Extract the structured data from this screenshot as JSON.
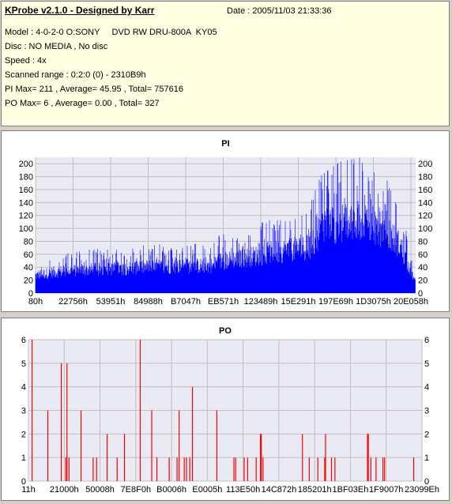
{
  "info": {
    "title": "KProbe v2.1.0 - Designed by Karr",
    "date": "Date : 2005/11/03 21:33:36",
    "model": "Model : 4-0-2-0 O:SONY     DVD RW DRU-800A  KY05",
    "disc": "Disc : NO MEDIA , No disc",
    "speed": "Speed : 4x",
    "range": "Scanned range : 0:2:0 (0) - 2310B9h",
    "pi_stats": "PI Max= 211 , Average= 45.95 , Total= 757616",
    "po_stats": "PO Max= 6 , Average= 0.00 , Total= 327"
  },
  "colors": {
    "pi": "#0000ff",
    "po": "#ff0000",
    "plot_bg": "#eaeaf4",
    "grid": "#bfbfbf"
  },
  "chart_data": [
    {
      "type": "bar",
      "title": "PI",
      "ylim": [
        0,
        210
      ],
      "yticks": [
        0,
        20,
        40,
        60,
        80,
        100,
        120,
        140,
        160,
        180,
        200
      ],
      "xticks": [
        "80h",
        "22756h",
        "53951h",
        "84988h",
        "B7047h",
        "EB571h",
        "123489h",
        "15E291h",
        "197E69h",
        "1D3075h",
        "20E058h"
      ],
      "profile": [
        {
          "pos": 0.0,
          "value": 35
        },
        {
          "pos": 0.05,
          "value": 42
        },
        {
          "pos": 0.12,
          "value": 46
        },
        {
          "pos": 0.2,
          "value": 48
        },
        {
          "pos": 0.3,
          "value": 52
        },
        {
          "pos": 0.4,
          "value": 54
        },
        {
          "pos": 0.47,
          "value": 55
        },
        {
          "pos": 0.475,
          "value": 62
        },
        {
          "pos": 0.55,
          "value": 70
        },
        {
          "pos": 0.62,
          "value": 80
        },
        {
          "pos": 0.72,
          "value": 92
        },
        {
          "pos": 0.75,
          "value": 125
        },
        {
          "pos": 0.8,
          "value": 140
        },
        {
          "pos": 0.86,
          "value": 145
        },
        {
          "pos": 0.92,
          "value": 125
        },
        {
          "pos": 0.96,
          "value": 95
        },
        {
          "pos": 1.0,
          "value": 20
        }
      ],
      "max": 211
    },
    {
      "type": "bar",
      "title": "PO",
      "ylim": [
        0,
        6
      ],
      "yticks": [
        0,
        1,
        2,
        3,
        4,
        5,
        6
      ],
      "xticks": [
        "11h",
        "21000h",
        "50008h",
        "7E8F0h",
        "B0006h",
        "E0005h",
        "113E50h",
        "14C872h",
        "185201h",
        "1BF03Eh",
        "1F9007h",
        "23099Eh"
      ],
      "x_range": [
        17,
        2298270
      ],
      "spikes": [
        {
          "x": 21000.0,
          "value": 6
        },
        {
          "x": 113000.0,
          "value": 3
        },
        {
          "x": 192000.0,
          "value": 5
        },
        {
          "x": 218000.0,
          "value": 1
        },
        {
          "x": 225000.0,
          "value": 5
        },
        {
          "x": 237000.0,
          "value": 1
        },
        {
          "x": 307000.0,
          "value": 3
        },
        {
          "x": 378000.0,
          "value": 1
        },
        {
          "x": 398000.0,
          "value": 1
        },
        {
          "x": 460000.0,
          "value": 2
        },
        {
          "x": 518000.0,
          "value": 1
        },
        {
          "x": 561000.0,
          "value": 2
        },
        {
          "x": 653000.0,
          "value": 6
        },
        {
          "x": 720000.0,
          "value": 3
        },
        {
          "x": 750000.0,
          "value": 1
        },
        {
          "x": 822000.0,
          "value": 1
        },
        {
          "x": 868000.0,
          "value": 1
        },
        {
          "x": 880000.0,
          "value": 3
        },
        {
          "x": 910000.0,
          "value": 1
        },
        {
          "x": 923000.0,
          "value": 1
        },
        {
          "x": 942000.0,
          "value": 1
        },
        {
          "x": 958000.0,
          "value": 4
        },
        {
          "x": 1100000.0,
          "value": 3
        },
        {
          "x": 1200000.0,
          "value": 1
        },
        {
          "x": 1210000.0,
          "value": 1
        },
        {
          "x": 1260000.0,
          "value": 1
        },
        {
          "x": 1280000.0,
          "value": 1
        },
        {
          "x": 1330000.0,
          "value": 1
        },
        {
          "x": 1355000.0,
          "value": 2
        },
        {
          "x": 1360000.0,
          "value": 2
        },
        {
          "x": 1370000.0,
          "value": 1
        },
        {
          "x": 1600000.0,
          "value": 2
        },
        {
          "x": 1640000.0,
          "value": 1
        },
        {
          "x": 1690000.0,
          "value": 1
        },
        {
          "x": 1730000.0,
          "value": 1
        },
        {
          "x": 1735000.0,
          "value": 2
        },
        {
          "x": 1770000.0,
          "value": 1
        },
        {
          "x": 1790000.0,
          "value": 1
        },
        {
          "x": 1980000.0,
          "value": 2
        },
        {
          "x": 1985000.0,
          "value": 2
        },
        {
          "x": 2000000.0,
          "value": 1
        },
        {
          "x": 2030000.0,
          "value": 1
        },
        {
          "x": 2070000.0,
          "value": 1
        },
        {
          "x": 2080000.0,
          "value": 1
        },
        {
          "x": 2250000.0,
          "value": 1
        }
      ]
    }
  ]
}
